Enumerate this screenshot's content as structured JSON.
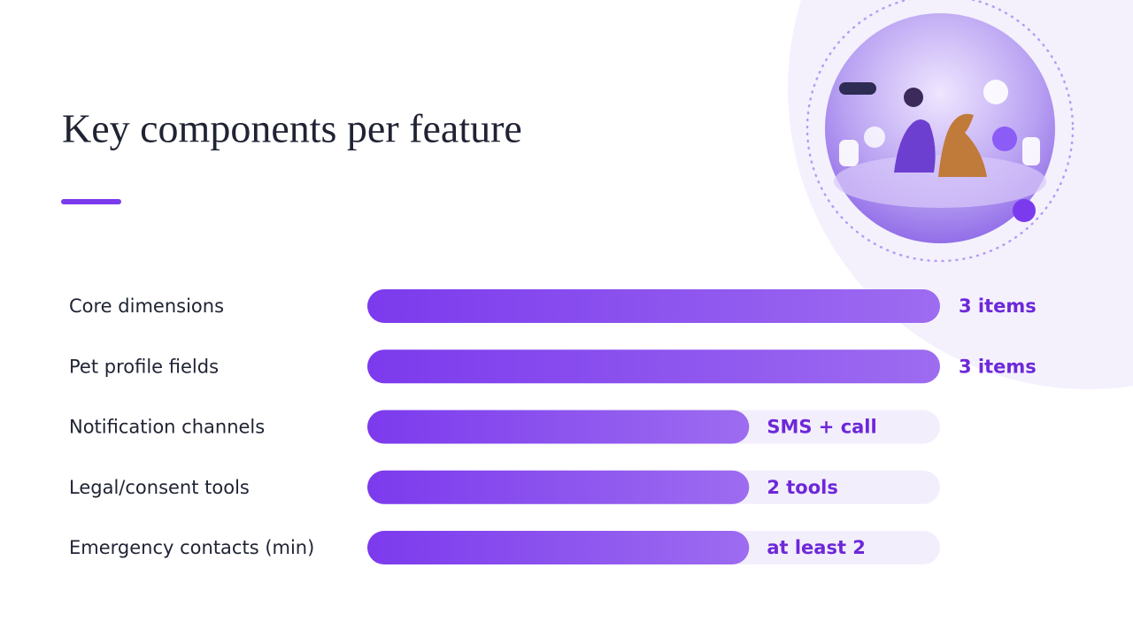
{
  "chart_data": {
    "type": "bar",
    "orientation": "horizontal",
    "title": "Key components per feature",
    "categories": [
      "Core dimensions",
      "Pet profile fields",
      "Notification channels",
      "Legal/consent tools",
      "Emergency contacts (min)"
    ],
    "values": [
      3,
      3,
      2,
      2,
      2
    ],
    "value_labels": [
      "3 items",
      "3 items",
      "SMS + call",
      "2 tools",
      "at least 2"
    ],
    "xlim": [
      0,
      3
    ],
    "color": "#7c3aed"
  }
}
